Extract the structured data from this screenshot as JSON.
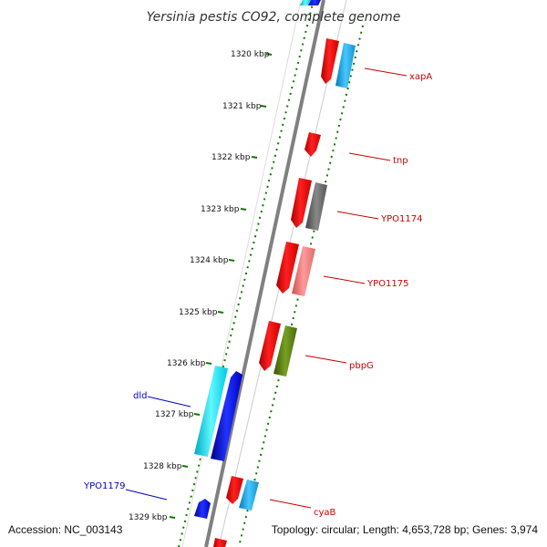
{
  "title": "Yersinia pestis CO92, complete genome",
  "accession_label": "Accession: NC_003143",
  "topology_label": "Topology: circular; Length: 4,653,728 bp; Genes: 3,974",
  "ticks": [
    {
      "label": "1320 kbp"
    },
    {
      "label": "1321 kbp"
    },
    {
      "label": "1322 kbp"
    },
    {
      "label": "1323 kbp"
    },
    {
      "label": "1324 kbp"
    },
    {
      "label": "1325 kbp"
    },
    {
      "label": "1326 kbp"
    },
    {
      "label": "1327 kbp"
    },
    {
      "label": "1328 kbp"
    },
    {
      "label": "1329 kbp"
    }
  ],
  "labels": {
    "xapA": "xapA",
    "tnp": "tnp",
    "YPO1174": "YPO1174",
    "YPO1175": "YPO1175",
    "pbpG": "pbpG",
    "cyaB": "cyaB",
    "dld": "dld",
    "YPO1179": "YPO1179"
  },
  "colors": {
    "cds": "#ff0000",
    "rna_cyan": "#00e0f0",
    "light_blue": "#22aadd",
    "gray": "#666666",
    "pink": "#ee7777",
    "olive": "#557711",
    "blue": "#0000dd",
    "tick": "#117700"
  }
}
